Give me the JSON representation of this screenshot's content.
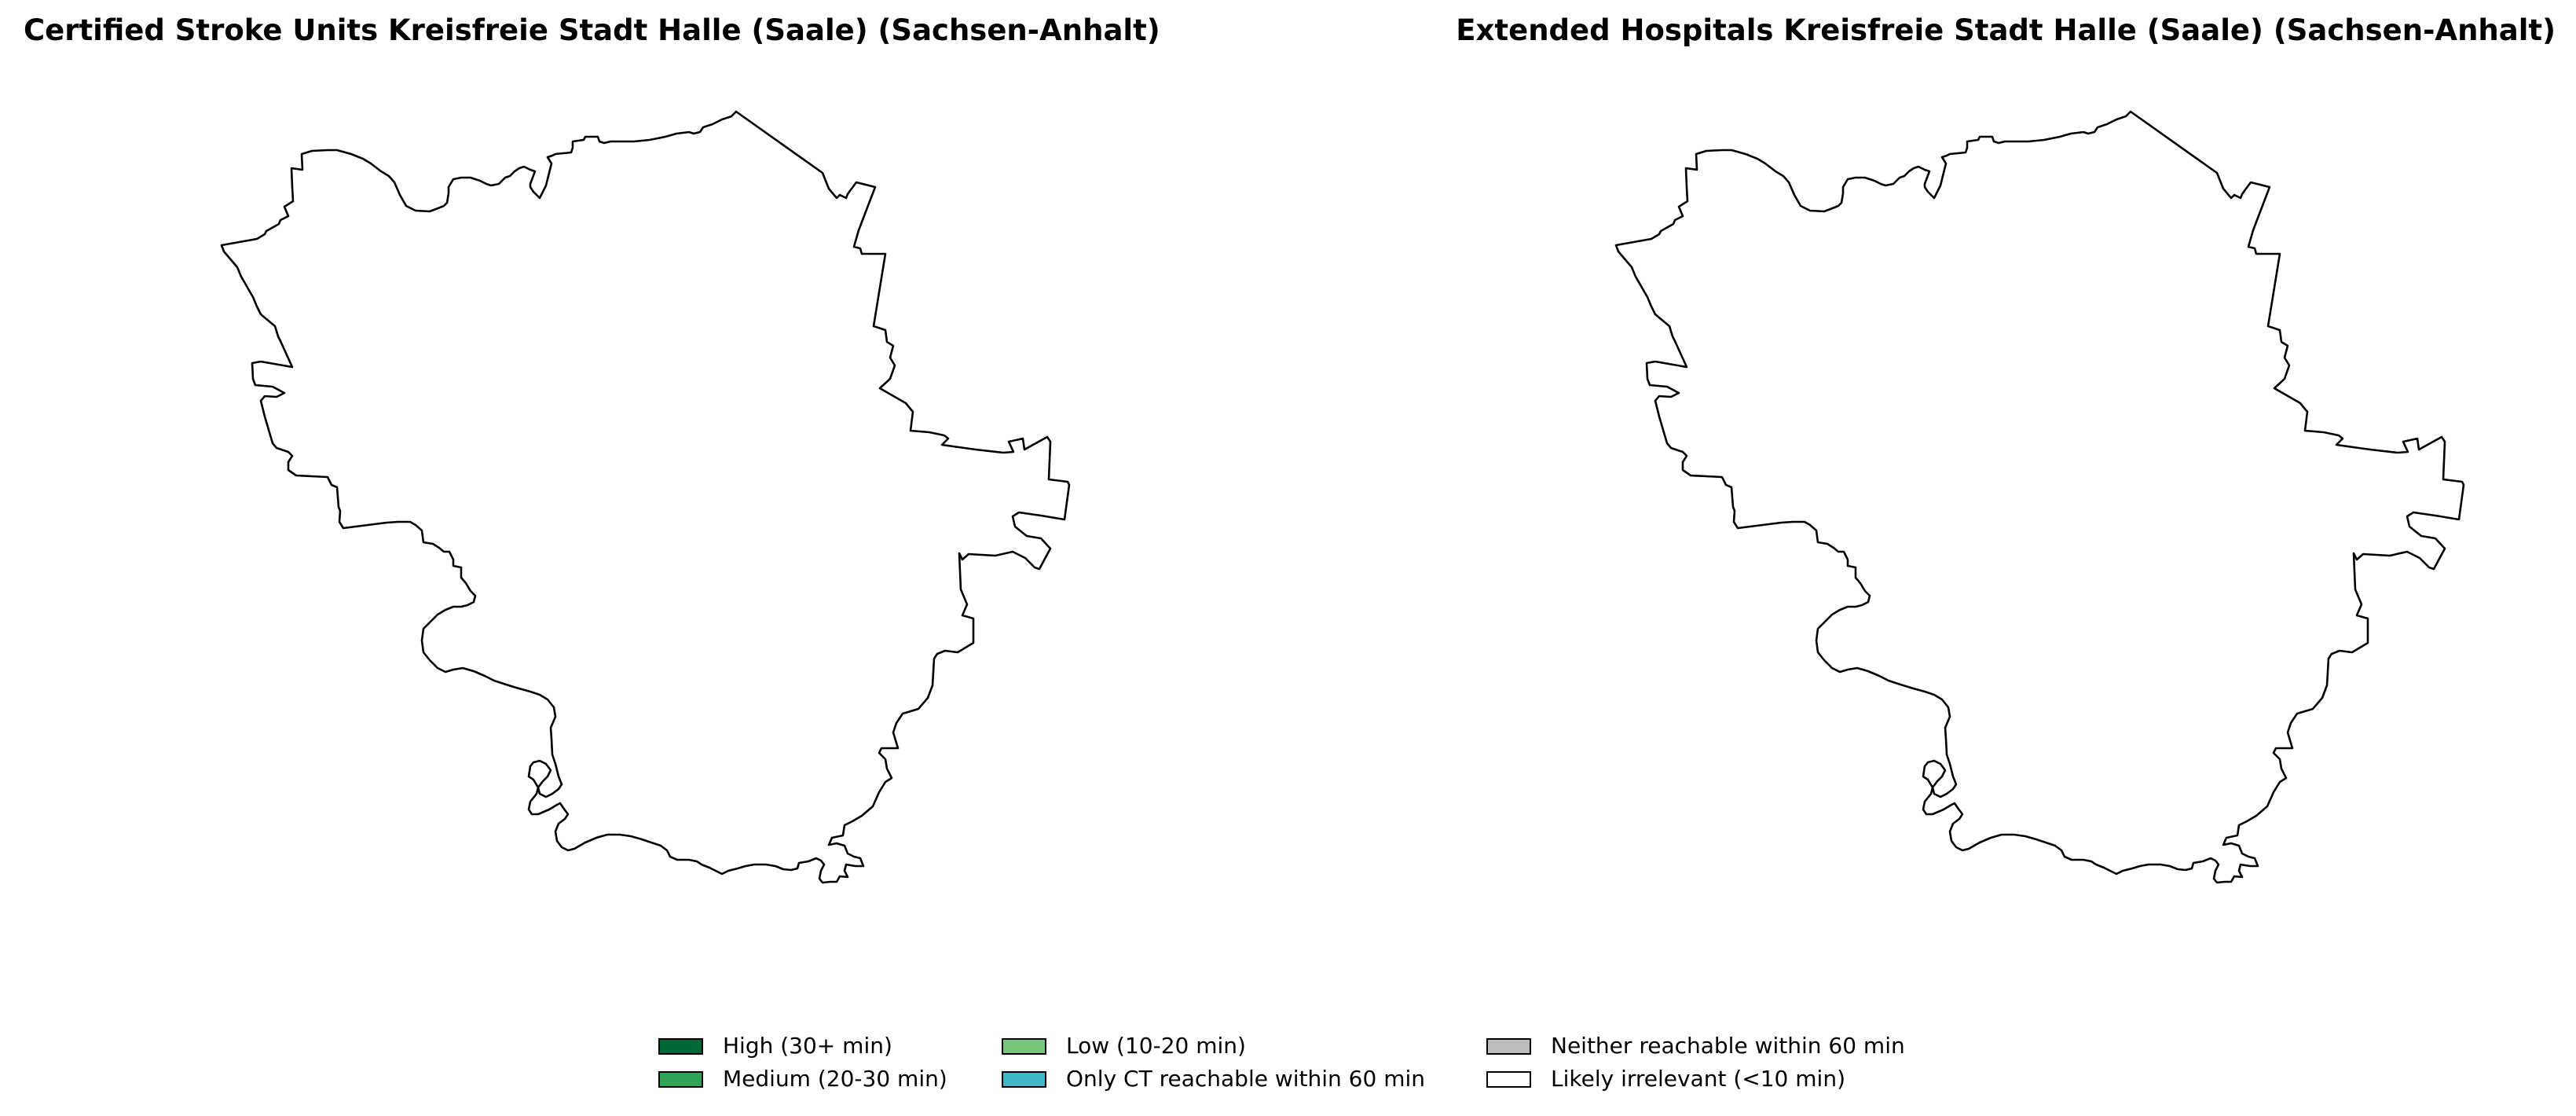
{
  "panels": [
    {
      "title": "Certified Stroke Units Kreisfreie Stadt Halle (Saale) (Sachsen-Anhalt)"
    },
    {
      "title": "Extended Hospitals Kreisfreie Stadt Halle (Saale) (Sachsen-Anhalt)"
    }
  ],
  "map": {
    "fill_color": "#ffffff",
    "outline_color": "#000000"
  },
  "legend": {
    "items": [
      {
        "label": "High (30+ min)",
        "color": "#006837"
      },
      {
        "label": "Medium (20-30 min)",
        "color": "#31a354"
      },
      {
        "label": "Low (10-20 min)",
        "color": "#78c679"
      },
      {
        "label": "Only CT reachable within 60 min",
        "color": "#41b6c4"
      },
      {
        "label": "Neither reachable within 60 min",
        "color": "#bdbdbd"
      },
      {
        "label": "Likely irrelevant (<10 min)",
        "color": "#ffffff"
      }
    ]
  }
}
